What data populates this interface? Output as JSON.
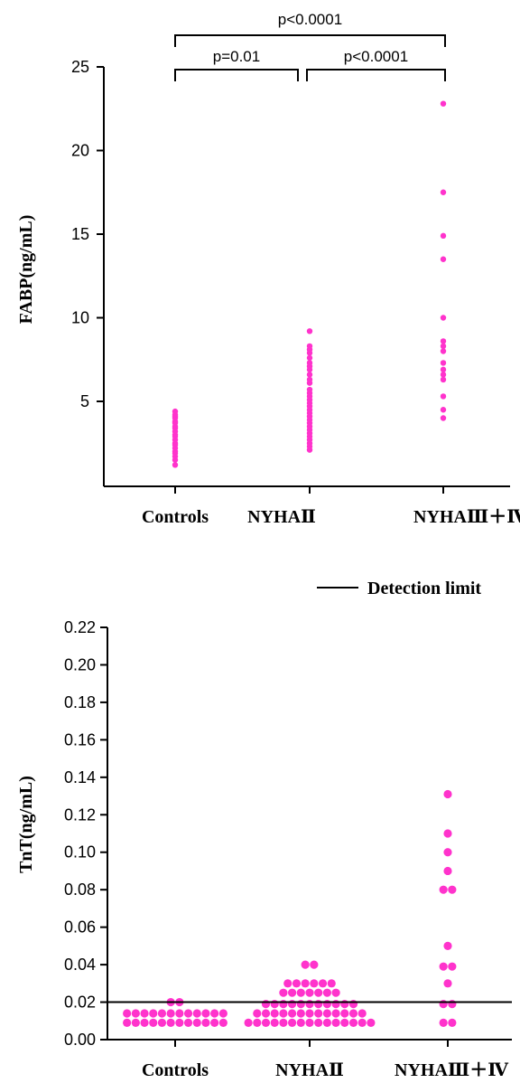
{
  "chart_data": [
    {
      "type": "scatter",
      "ylabel": "FABP(ng/mL)",
      "categories": [
        "Controls",
        "NYHAⅡ",
        "NYHAⅢ＋Ⅳ"
      ],
      "yticks": [
        "5",
        "10",
        "15",
        "20",
        "25"
      ],
      "ylim": [
        0,
        25
      ],
      "marker_color": "#ff33cc",
      "series": [
        {
          "values": [
            1.2,
            1.5,
            1.7,
            1.9,
            2.0,
            2.2,
            2.4,
            2.5,
            2.7,
            2.9,
            3.0,
            3.2,
            3.4,
            3.5,
            3.7,
            3.8,
            4.0,
            4.1,
            4.2,
            4.4
          ]
        },
        {
          "values": [
            2.1,
            2.3,
            2.5,
            2.7,
            2.9,
            3.1,
            3.3,
            3.5,
            3.7,
            3.9,
            4.1,
            4.3,
            4.5,
            4.7,
            4.9,
            5.1,
            5.3,
            5.5,
            5.7,
            6.1,
            6.3,
            6.6,
            6.9,
            7.1,
            7.3,
            7.6,
            7.9,
            8.1,
            8.3,
            9.2
          ]
        },
        {
          "values": [
            4.0,
            4.5,
            5.3,
            6.3,
            6.6,
            6.9,
            7.3,
            8.0,
            8.3,
            8.6,
            10.0,
            13.5,
            14.9,
            17.5,
            22.8
          ]
        }
      ],
      "comparisons": [
        {
          "from": "Controls",
          "to": "NYHAⅡ",
          "label": "p=0.01"
        },
        {
          "from": "NYHAⅡ",
          "to": "NYHAⅢ＋Ⅳ",
          "label": "p<0.0001"
        },
        {
          "from": "Controls",
          "to": "NYHAⅢ＋Ⅳ",
          "label": "p<0.0001"
        }
      ]
    },
    {
      "type": "scatter",
      "ylabel": "TnT(ng/mL)",
      "categories": [
        "Controls",
        "NYHAⅡ",
        "NYHAⅢ＋Ⅳ"
      ],
      "yticks": [
        "0.00",
        "0.02",
        "0.04",
        "0.06",
        "0.08",
        "0.10",
        "0.12",
        "0.14",
        "0.16",
        "0.18",
        "0.20",
        "0.22"
      ],
      "ylim": [
        0,
        0.22
      ],
      "marker_color": "#ff33cc",
      "detection_limit": 0.02,
      "legend": "Detection limit",
      "groups": [
        {
          "category": "Controls",
          "rows": [
            {
              "y": 0.009,
              "n": 12
            },
            {
              "y": 0.014,
              "n": 12
            },
            {
              "y": 0.02,
              "n": 2
            }
          ]
        },
        {
          "category": "NYHAⅡ",
          "rows": [
            {
              "y": 0.009,
              "n": 15
            },
            {
              "y": 0.014,
              "n": 13
            },
            {
              "y": 0.019,
              "n": 11
            },
            {
              "y": 0.025,
              "n": 7
            },
            {
              "y": 0.03,
              "n": 6
            },
            {
              "y": 0.04,
              "n": 2
            }
          ]
        },
        {
          "category": "NYHAⅢ＋Ⅳ",
          "rows": [
            {
              "y": 0.009,
              "n": 2
            },
            {
              "y": 0.019,
              "n": 2
            },
            {
              "y": 0.03,
              "n": 1
            },
            {
              "y": 0.039,
              "n": 2
            },
            {
              "y": 0.05,
              "n": 1
            },
            {
              "y": 0.08,
              "n": 2
            },
            {
              "y": 0.09,
              "n": 1
            },
            {
              "y": 0.1,
              "n": 1
            },
            {
              "y": 0.11,
              "n": 1
            },
            {
              "y": 0.131,
              "n": 1
            }
          ]
        }
      ]
    }
  ]
}
